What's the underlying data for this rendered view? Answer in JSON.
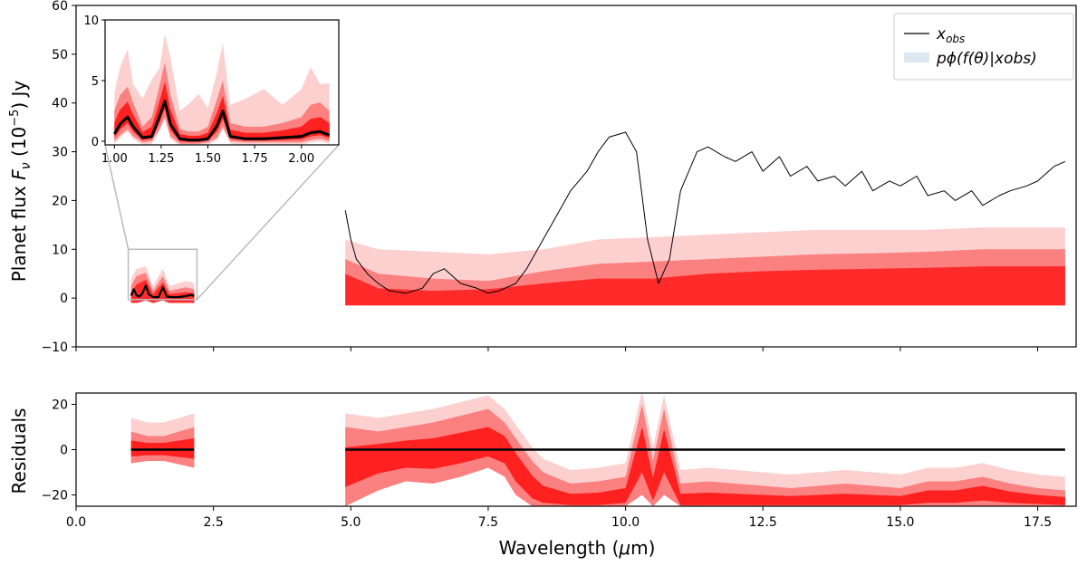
{
  "chart_data": [
    {
      "id": "main",
      "type": "line",
      "ylabel": "Planet flux F_ν (10⁻⁵) Jy",
      "ylabel_parts": {
        "pre": "Planet flux ",
        "sym": "F",
        "sub": "ν",
        "open": " (10",
        "sup": "−5",
        "close": ") Jy"
      },
      "xlim": [
        0,
        18.2
      ],
      "ylim": [
        -10,
        60
      ],
      "yticks": [
        -10,
        0,
        10,
        20,
        30,
        40,
        50,
        60
      ],
      "xticks": [
        0.0,
        2.5,
        5.0,
        7.5,
        10.0,
        12.5,
        15.0,
        17.5
      ],
      "legend": {
        "position": "top-right",
        "entries": [
          {
            "label": "x_obs",
            "display_main": "x",
            "display_sub": "obs",
            "color": "#000000",
            "kind": "line"
          },
          {
            "label": "p_φ(f(θ)|x_obs)",
            "display": "pϕ(f(θ)|xobs)",
            "color": "#dde8f3",
            "kind": "patch"
          }
        ]
      },
      "series": [
        {
          "name": "x_obs",
          "color": "#000000",
          "segments": [
            {
              "x": [
                1.0,
                1.05,
                1.1,
                1.15,
                1.2,
                1.27,
                1.32,
                1.4,
                1.5,
                1.58,
                1.65,
                1.75,
                1.85,
                2.0,
                2.1,
                2.15
              ],
              "y": [
                0.5,
                1.8,
                0.6,
                0.3,
                0.8,
                2.6,
                0.8,
                0.2,
                0.2,
                2.2,
                0.3,
                0.2,
                0.2,
                0.4,
                0.7,
                0.4
              ]
            },
            {
              "x": [
                4.9,
                5.0,
                5.1,
                5.3,
                5.5,
                5.7,
                6.0,
                6.3,
                6.5,
                6.7,
                7.0,
                7.3,
                7.5,
                7.7,
                8.0,
                8.2,
                8.5,
                8.8,
                9.0,
                9.3,
                9.5,
                9.7,
                10.0,
                10.2,
                10.4,
                10.6,
                10.8,
                11.0,
                11.3,
                11.5,
                11.8,
                12.0,
                12.3,
                12.5,
                12.8,
                13.0,
                13.3,
                13.5,
                13.8,
                14.0,
                14.3,
                14.5,
                14.8,
                15.0,
                15.3,
                15.5,
                15.8,
                16.0,
                16.3,
                16.5,
                16.8,
                17.0,
                17.3,
                17.5,
                17.8,
                18.0
              ],
              "y": [
                18,
                12,
                8,
                5,
                3,
                1.5,
                1,
                2,
                5,
                6,
                3,
                2,
                1,
                1.5,
                3,
                6,
                12,
                18,
                22,
                26,
                30,
                33,
                34,
                30,
                12,
                3,
                8,
                22,
                30,
                31,
                29,
                28,
                30,
                26,
                29,
                25,
                27,
                24,
                25,
                23,
                26,
                22,
                24,
                23,
                25,
                21,
                22,
                20,
                22,
                19,
                21,
                22,
                23,
                24,
                27,
                28
              ]
            }
          ]
        },
        {
          "name": "p_φ(f(θ)|x_obs)",
          "color": "#ff2020",
          "median": {
            "x": [
              1.0,
              1.1,
              1.27,
              1.4,
              1.58,
              1.7,
              2.0,
              2.15,
              4.9,
              5.5,
              6.5,
              7.5,
              8.5,
              9.5,
              10.5,
              11.5,
              12.5,
              13.5,
              14.5,
              15.5,
              16.5,
              17.5,
              18.0
            ],
            "y": [
              0.5,
              1.5,
              2.5,
              0.3,
              2.0,
              0.3,
              0.5,
              0.4,
              2.0,
              0.5,
              0.4,
              0.5,
              1.0,
              1.5,
              1.5,
              2.0,
              2.2,
              2.5,
              2.6,
              2.8,
              3.0,
              3.0,
              3.0
            ]
          },
          "band_inner_upper": [
            1.2,
            2.8,
            3.8,
            0.8,
            3.2,
            0.8,
            1.2,
            1.0,
            5.0,
            2.0,
            1.5,
            1.8,
            3.0,
            4.0,
            4.0,
            5.0,
            5.5,
            5.8,
            6.0,
            6.2,
            6.5,
            6.5,
            6.5
          ],
          "band_mid_upper": [
            2.5,
            4.5,
            5.2,
            1.5,
            4.5,
            1.5,
            2.2,
            1.8,
            8.0,
            5.0,
            4.0,
            3.5,
            5.5,
            7.0,
            7.5,
            8.0,
            8.5,
            9.0,
            9.2,
            9.5,
            10.0,
            10.0,
            10.0
          ],
          "band_outer_upper": [
            4.0,
            6.0,
            6.5,
            2.5,
            6.0,
            2.5,
            3.5,
            3.0,
            12.0,
            10.0,
            9.5,
            9.0,
            10.0,
            12.0,
            12.5,
            13.0,
            13.5,
            14.0,
            14.0,
            14.0,
            14.5,
            14.5,
            14.5
          ],
          "band_lower": [
            -1.0,
            -1.0,
            -0.5,
            -1.0,
            -0.5,
            -1.0,
            -1.0,
            -1.0,
            -1.5,
            -1.5,
            -1.5,
            -1.5,
            -1.5,
            -1.5,
            -1.5,
            -1.5,
            -1.5,
            -1.5,
            -1.5,
            -1.5,
            -1.5,
            -1.5,
            -1.5
          ]
        }
      ]
    },
    {
      "id": "inset",
      "type": "line",
      "xlim": [
        0.95,
        2.2
      ],
      "ylim": [
        -0.3,
        10
      ],
      "xticks": [
        1.0,
        1.25,
        1.5,
        1.75,
        2.0
      ],
      "yticks": [
        0,
        5,
        10
      ],
      "xtick_labels": [
        "1.00",
        "1.25",
        "1.50",
        "1.75",
        "2.00"
      ],
      "observed": {
        "x": [
          1.0,
          1.03,
          1.07,
          1.1,
          1.15,
          1.2,
          1.24,
          1.27,
          1.3,
          1.35,
          1.4,
          1.45,
          1.5,
          1.55,
          1.58,
          1.62,
          1.7,
          1.8,
          1.9,
          2.0,
          2.05,
          2.1,
          2.15
        ],
        "y": [
          0.6,
          1.4,
          2.0,
          1.2,
          0.3,
          0.4,
          2.0,
          3.3,
          1.4,
          0.2,
          0.1,
          0.1,
          0.2,
          1.3,
          2.5,
          0.4,
          0.2,
          0.2,
          0.3,
          0.4,
          0.7,
          0.8,
          0.5
        ]
      },
      "band_upper": [
        2.5,
        3.8,
        4.5,
        3.2,
        1.2,
        2.0,
        4.5,
        6.5,
        3.8,
        1.0,
        0.8,
        0.8,
        1.2,
        3.5,
        5.0,
        1.5,
        1.2,
        1.2,
        1.5,
        2.0,
        3.0,
        3.2,
        2.5
      ],
      "band_lower": [
        0.0,
        0.5,
        1.0,
        0.4,
        -0.1,
        0.0,
        1.0,
        2.0,
        0.4,
        -0.2,
        -0.2,
        -0.2,
        -0.1,
        0.3,
        1.2,
        0.0,
        -0.1,
        -0.1,
        -0.1,
        -0.1,
        0.1,
        0.2,
        0.0
      ]
    },
    {
      "id": "residuals",
      "type": "line",
      "ylabel": "Residuals",
      "xlabel": "Wavelength (μm)",
      "xlabel_parts": {
        "pre": "Wavelength (",
        "sym": "μ",
        "post": "m)"
      },
      "xlim": [
        0,
        18.2
      ],
      "ylim": [
        -25,
        25
      ],
      "yticks": [
        -20,
        0,
        20
      ],
      "xticks": [
        0.0,
        2.5,
        5.0,
        7.5,
        10.0,
        12.5,
        15.0,
        17.5
      ],
      "xtick_labels": [
        "0.0",
        "2.5",
        "5.0",
        "7.5",
        "10.0",
        "12.5",
        "15.0",
        "17.5"
      ],
      "zero_line": {
        "segments": [
          [
            1.0,
            2.15
          ],
          [
            4.9,
            18.0
          ]
        ],
        "value": 0
      },
      "band": {
        "x": [
          1.0,
          1.3,
          1.6,
          2.15,
          4.9,
          5.5,
          6.0,
          6.5,
          7.0,
          7.5,
          7.8,
          8.0,
          8.3,
          8.5,
          9.0,
          9.5,
          10.0,
          10.3,
          10.5,
          10.7,
          11.0,
          11.5,
          12.0,
          12.5,
          13.0,
          13.5,
          14.0,
          14.5,
          15.0,
          15.5,
          16.0,
          16.5,
          17.0,
          17.5,
          18.0
        ],
        "median": [
          0,
          0,
          0,
          0,
          -8,
          -3,
          -2,
          -2,
          0,
          2,
          0,
          -8,
          -18,
          -22,
          -24,
          -24,
          -22,
          0,
          -20,
          0,
          -24,
          -24,
          -24,
          -24,
          -24,
          -24,
          -24,
          -24,
          -24,
          -22,
          -22,
          -20,
          -22,
          -23,
          -24
        ],
        "upper": [
          8,
          6,
          6,
          10,
          10,
          8,
          10,
          12,
          15,
          18,
          12,
          5,
          -5,
          -10,
          -15,
          -14,
          -12,
          20,
          -5,
          18,
          -15,
          -14,
          -15,
          -16,
          -17,
          -16,
          -15,
          -16,
          -17,
          -14,
          -14,
          -12,
          -15,
          -17,
          -18
        ],
        "lower": [
          -6,
          -5,
          -5,
          -8,
          -25,
          -18,
          -14,
          -15,
          -12,
          -8,
          -12,
          -20,
          -25,
          -25,
          -25,
          -25,
          -25,
          -20,
          -25,
          -20,
          -25,
          -25,
          -25,
          -25,
          -25,
          -25,
          -25,
          -25,
          -25,
          -25,
          -25,
          -25,
          -25,
          -25,
          -25
        ]
      }
    }
  ],
  "colors": {
    "observed": "#000000",
    "band_outer": "#fdd0d0",
    "band_mid": "#fb8080",
    "band_inner": "#ff2020",
    "median": "#ff3030",
    "legend_patch": "#dde8f3",
    "inset_connector": "#bbbbbb"
  }
}
